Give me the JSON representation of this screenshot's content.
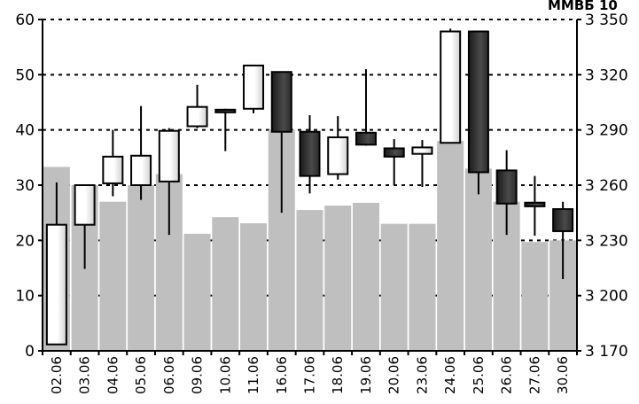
{
  "chart_data": {
    "type": "candlestick",
    "corner_label": "ММВБ 10",
    "categories": [
      "02.06",
      "03.06",
      "04.06",
      "05.06",
      "06.06",
      "09.06",
      "10.06",
      "11.06",
      "16.06",
      "17.06",
      "18.06",
      "19.06",
      "20.06",
      "23.06",
      "24.06",
      "25.06",
      "26.06",
      "27.06",
      "30.06"
    ],
    "volume_axis": {
      "min": 0,
      "max": 60,
      "step": 10,
      "side": "left",
      "tick_labels": [
        "0",
        "10",
        "20",
        "30",
        "40",
        "50",
        "60"
      ]
    },
    "price_axis": {
      "min": 3170,
      "max": 3350,
      "step": 30,
      "side": "right",
      "tick_labels": [
        "3 170",
        "3 200",
        "3 230",
        "3 260",
        "3 290",
        "3 320",
        "3 350"
      ]
    },
    "volume": [
      33.3,
      30.0,
      27.0,
      30.0,
      32.0,
      21.2,
      24.2,
      23.1,
      40.0,
      25.5,
      26.3,
      26.8,
      23.0,
      23.0,
      38.0,
      33.0,
      27.0,
      19.7,
      20.0
    ],
    "ohlc": [
      {
        "open": 3173.5,
        "high": 3261.5,
        "low": 3173.5,
        "close": 3238.5
      },
      {
        "open": 3238.5,
        "high": 3260.0,
        "low": 3214.5,
        "close": 3260.0
      },
      {
        "open": 3261.0,
        "high": 3290.0,
        "low": 3254.0,
        "close": 3275.5
      },
      {
        "open": 3260.0,
        "high": 3303.0,
        "low": 3252.0,
        "close": 3276.0
      },
      {
        "open": 3262.0,
        "high": 3291.0,
        "low": 3233.0,
        "close": 3289.5
      },
      {
        "open": 3292.0,
        "high": 3314.5,
        "low": 3291.0,
        "close": 3302.5
      },
      {
        "open": 3301.0,
        "high": 3301.5,
        "low": 3278.5,
        "close": 3300.5
      },
      {
        "open": 3301.5,
        "high": 3325.0,
        "low": 3299.0,
        "close": 3325.0
      },
      {
        "open": 3321.5,
        "high": 3321.5,
        "low": 3245.0,
        "close": 3289.0
      },
      {
        "open": 3289.0,
        "high": 3298.0,
        "low": 3255.5,
        "close": 3265.0
      },
      {
        "open": 3266.0,
        "high": 3297.5,
        "low": 3263.0,
        "close": 3286.0
      },
      {
        "open": 3288.5,
        "high": 3323.0,
        "low": 3281.5,
        "close": 3282.0
      },
      {
        "open": 3280.0,
        "high": 3285.0,
        "low": 3260.0,
        "close": 3275.5
      },
      {
        "open": 3277.0,
        "high": 3284.5,
        "low": 3259.0,
        "close": 3280.5
      },
      {
        "open": 3283.0,
        "high": 3345.0,
        "low": 3283.0,
        "close": 3343.5
      },
      {
        "open": 3343.5,
        "high": 3343.5,
        "low": 3255.0,
        "close": 3267.0
      },
      {
        "open": 3268.0,
        "high": 3279.0,
        "low": 3233.0,
        "close": 3250.0
      },
      {
        "open": 3250.5,
        "high": 3265.0,
        "low": 3232.5,
        "close": 3248.5
      },
      {
        "open": 3247.0,
        "high": 3251.0,
        "low": 3209.0,
        "close": 3235.0
      }
    ],
    "colors": {
      "volume_bar": "#bfbfbf",
      "up_body": "#ffffff",
      "down_body": "#404040",
      "wick": "#000000",
      "grid": "#000000"
    },
    "grid": true,
    "xlabel": "",
    "ylabel": ""
  }
}
